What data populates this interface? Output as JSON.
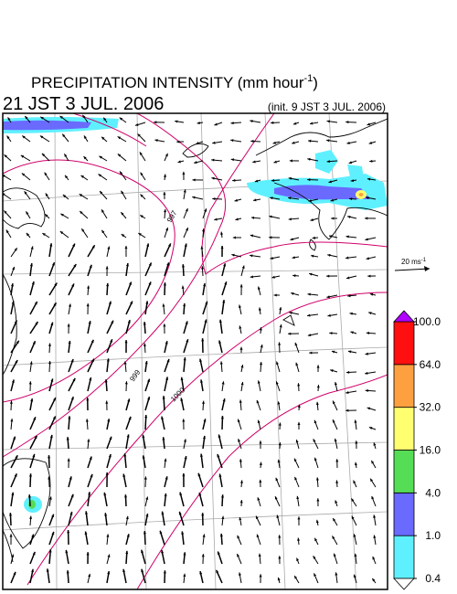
{
  "header": {
    "title": [
      "PRECIPITATION INTENSITY (mm hour",
      "-1",
      ")"
    ],
    "valid_time": "21 JST 3 JUL. 2006",
    "init_time": "(init. 9 JST 3 JUL. 2006)"
  },
  "legend": {
    "vector_scale": [
      "20 ms",
      "-1"
    ]
  },
  "contour_labels": [
    "997",
    "999",
    "1000"
  ],
  "colorbar": {
    "ticks": [
      {
        "value": 0.4,
        "label": "0.4"
      },
      {
        "value": 1,
        "label": "1.0"
      },
      {
        "value": 4,
        "label": "4.0"
      },
      {
        "value": 16,
        "label": "16.0"
      },
      {
        "value": 32,
        "label": "32.0"
      },
      {
        "value": 64,
        "label": "64.0"
      },
      {
        "value": 100,
        "label": "100.0"
      }
    ],
    "colors": [
      "#5ff0ff",
      "#6a6aff",
      "#55dd55",
      "#ffff70",
      "#ffa040",
      "#ff1010"
    ],
    "over_color": "#b000ff",
    "under_color": "#ffffff"
  }
}
